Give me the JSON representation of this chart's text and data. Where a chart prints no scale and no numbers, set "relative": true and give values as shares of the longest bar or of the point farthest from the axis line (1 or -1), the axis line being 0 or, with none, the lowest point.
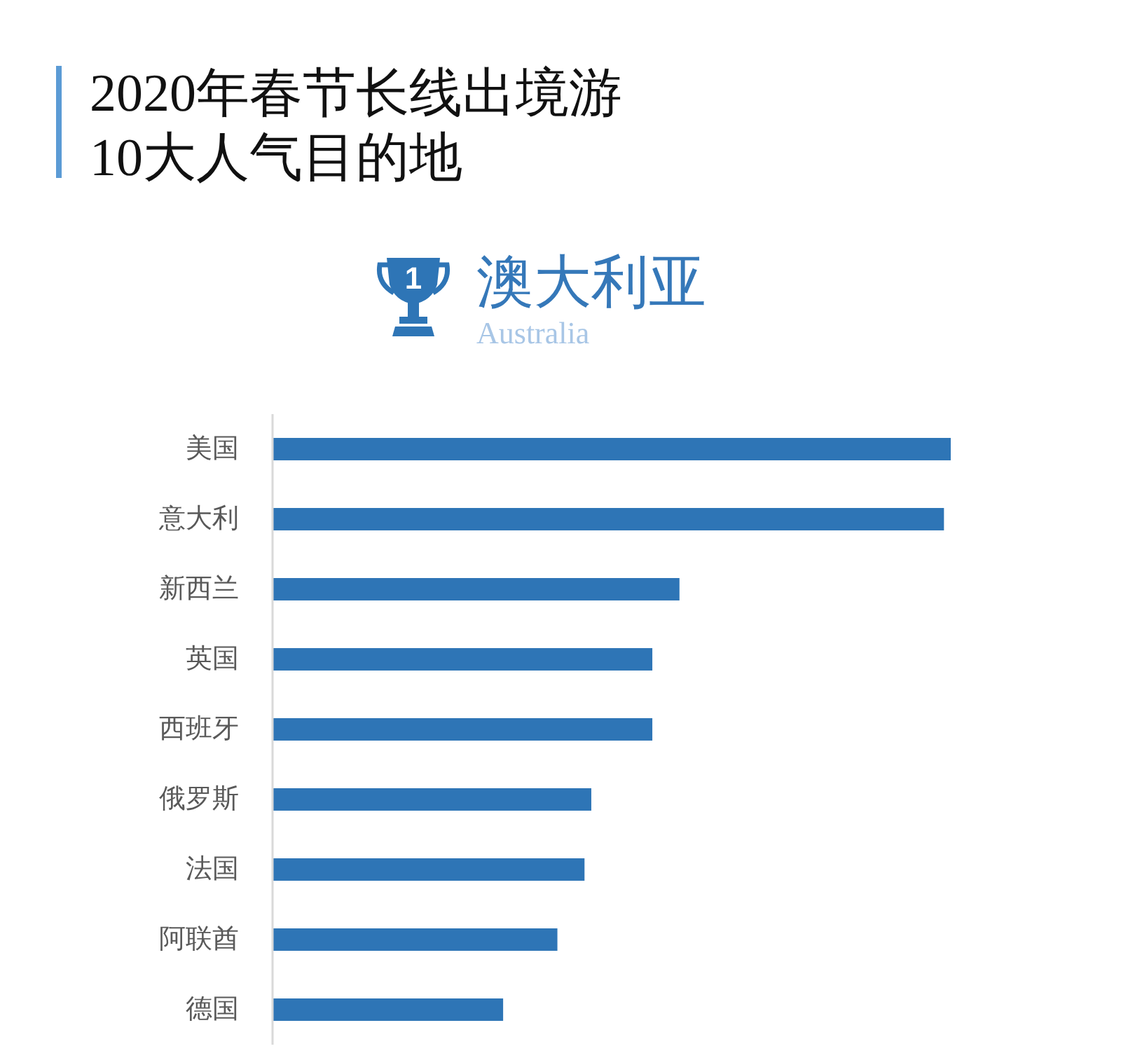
{
  "chart_data": {
    "type": "bar",
    "orientation": "horizontal",
    "relative": true,
    "title": "2020年春节长线出境游\n10大人气目的地",
    "annotations": [
      "1",
      "澳大利亚",
      "Australia"
    ],
    "categories": [
      "美国",
      "意大利",
      "新西兰",
      "英国",
      "西班牙",
      "俄罗斯",
      "法国",
      "阿联酋",
      "德国"
    ],
    "values": [
      1,
      0.99,
      0.6,
      0.56,
      0.56,
      0.47,
      0.46,
      0.42,
      0.34
    ],
    "color": "#2e75b6"
  }
}
